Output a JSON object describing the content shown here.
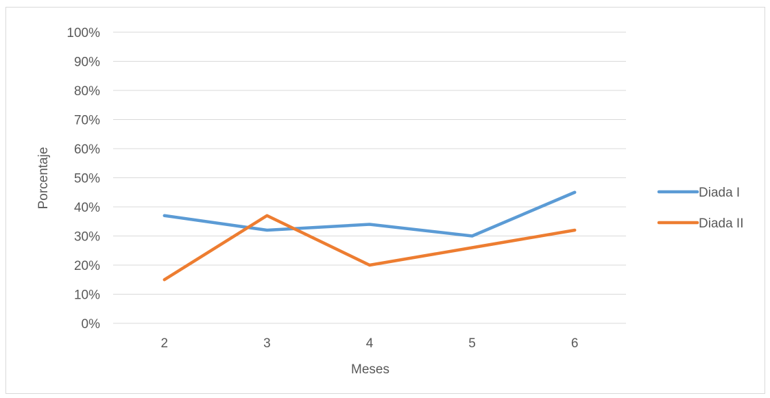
{
  "chart_data": {
    "type": "line",
    "title": "",
    "xlabel": "Meses",
    "ylabel": "Porcentaje",
    "categories": [
      "2",
      "3",
      "4",
      "5",
      "6"
    ],
    "ylim": [
      0,
      100
    ],
    "yticks": [
      "0%",
      "10%",
      "20%",
      "30%",
      "40%",
      "50%",
      "60%",
      "70%",
      "80%",
      "90%",
      "100%"
    ],
    "grid": true,
    "legend_position": "right",
    "series": [
      {
        "name": "Diada I",
        "color": "#5b9bd5",
        "values": [
          37,
          32,
          34,
          30,
          45
        ]
      },
      {
        "name": "Diada II",
        "color": "#ed7d31",
        "values": [
          15,
          37,
          20,
          26,
          32
        ]
      }
    ]
  }
}
